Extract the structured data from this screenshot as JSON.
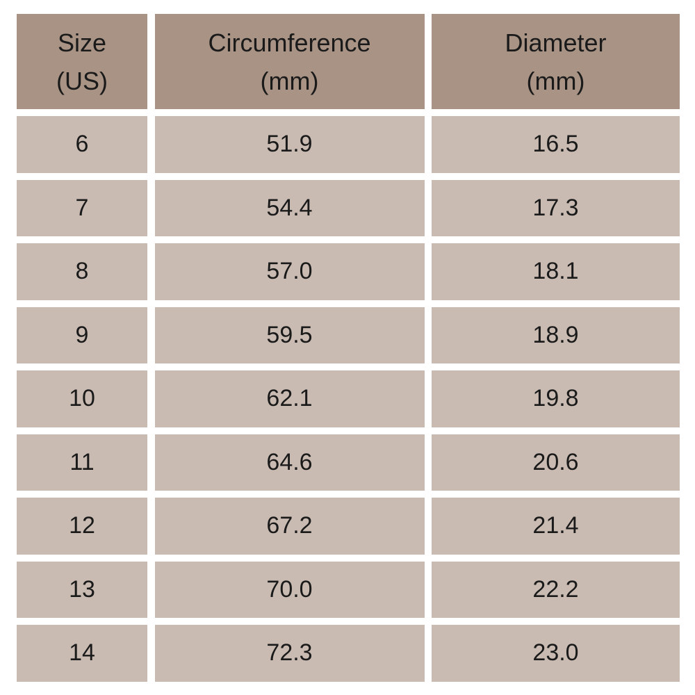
{
  "colors": {
    "header_bg": "#a89385",
    "cell_bg": "#c9bbb2",
    "text": "#1a1a1a"
  },
  "table": {
    "headers": [
      "Size\n(US)",
      "Circumference\n(mm)",
      "Diameter\n(mm)"
    ],
    "rows": [
      [
        "6",
        "51.9",
        "16.5"
      ],
      [
        "7",
        "54.4",
        "17.3"
      ],
      [
        "8",
        "57.0",
        "18.1"
      ],
      [
        "9",
        "59.5",
        "18.9"
      ],
      [
        "10",
        "62.1",
        "19.8"
      ],
      [
        "11",
        "64.6",
        "20.6"
      ],
      [
        "12",
        "67.2",
        "21.4"
      ],
      [
        "13",
        "70.0",
        "22.2"
      ],
      [
        "14",
        "72.3",
        "23.0"
      ]
    ]
  }
}
